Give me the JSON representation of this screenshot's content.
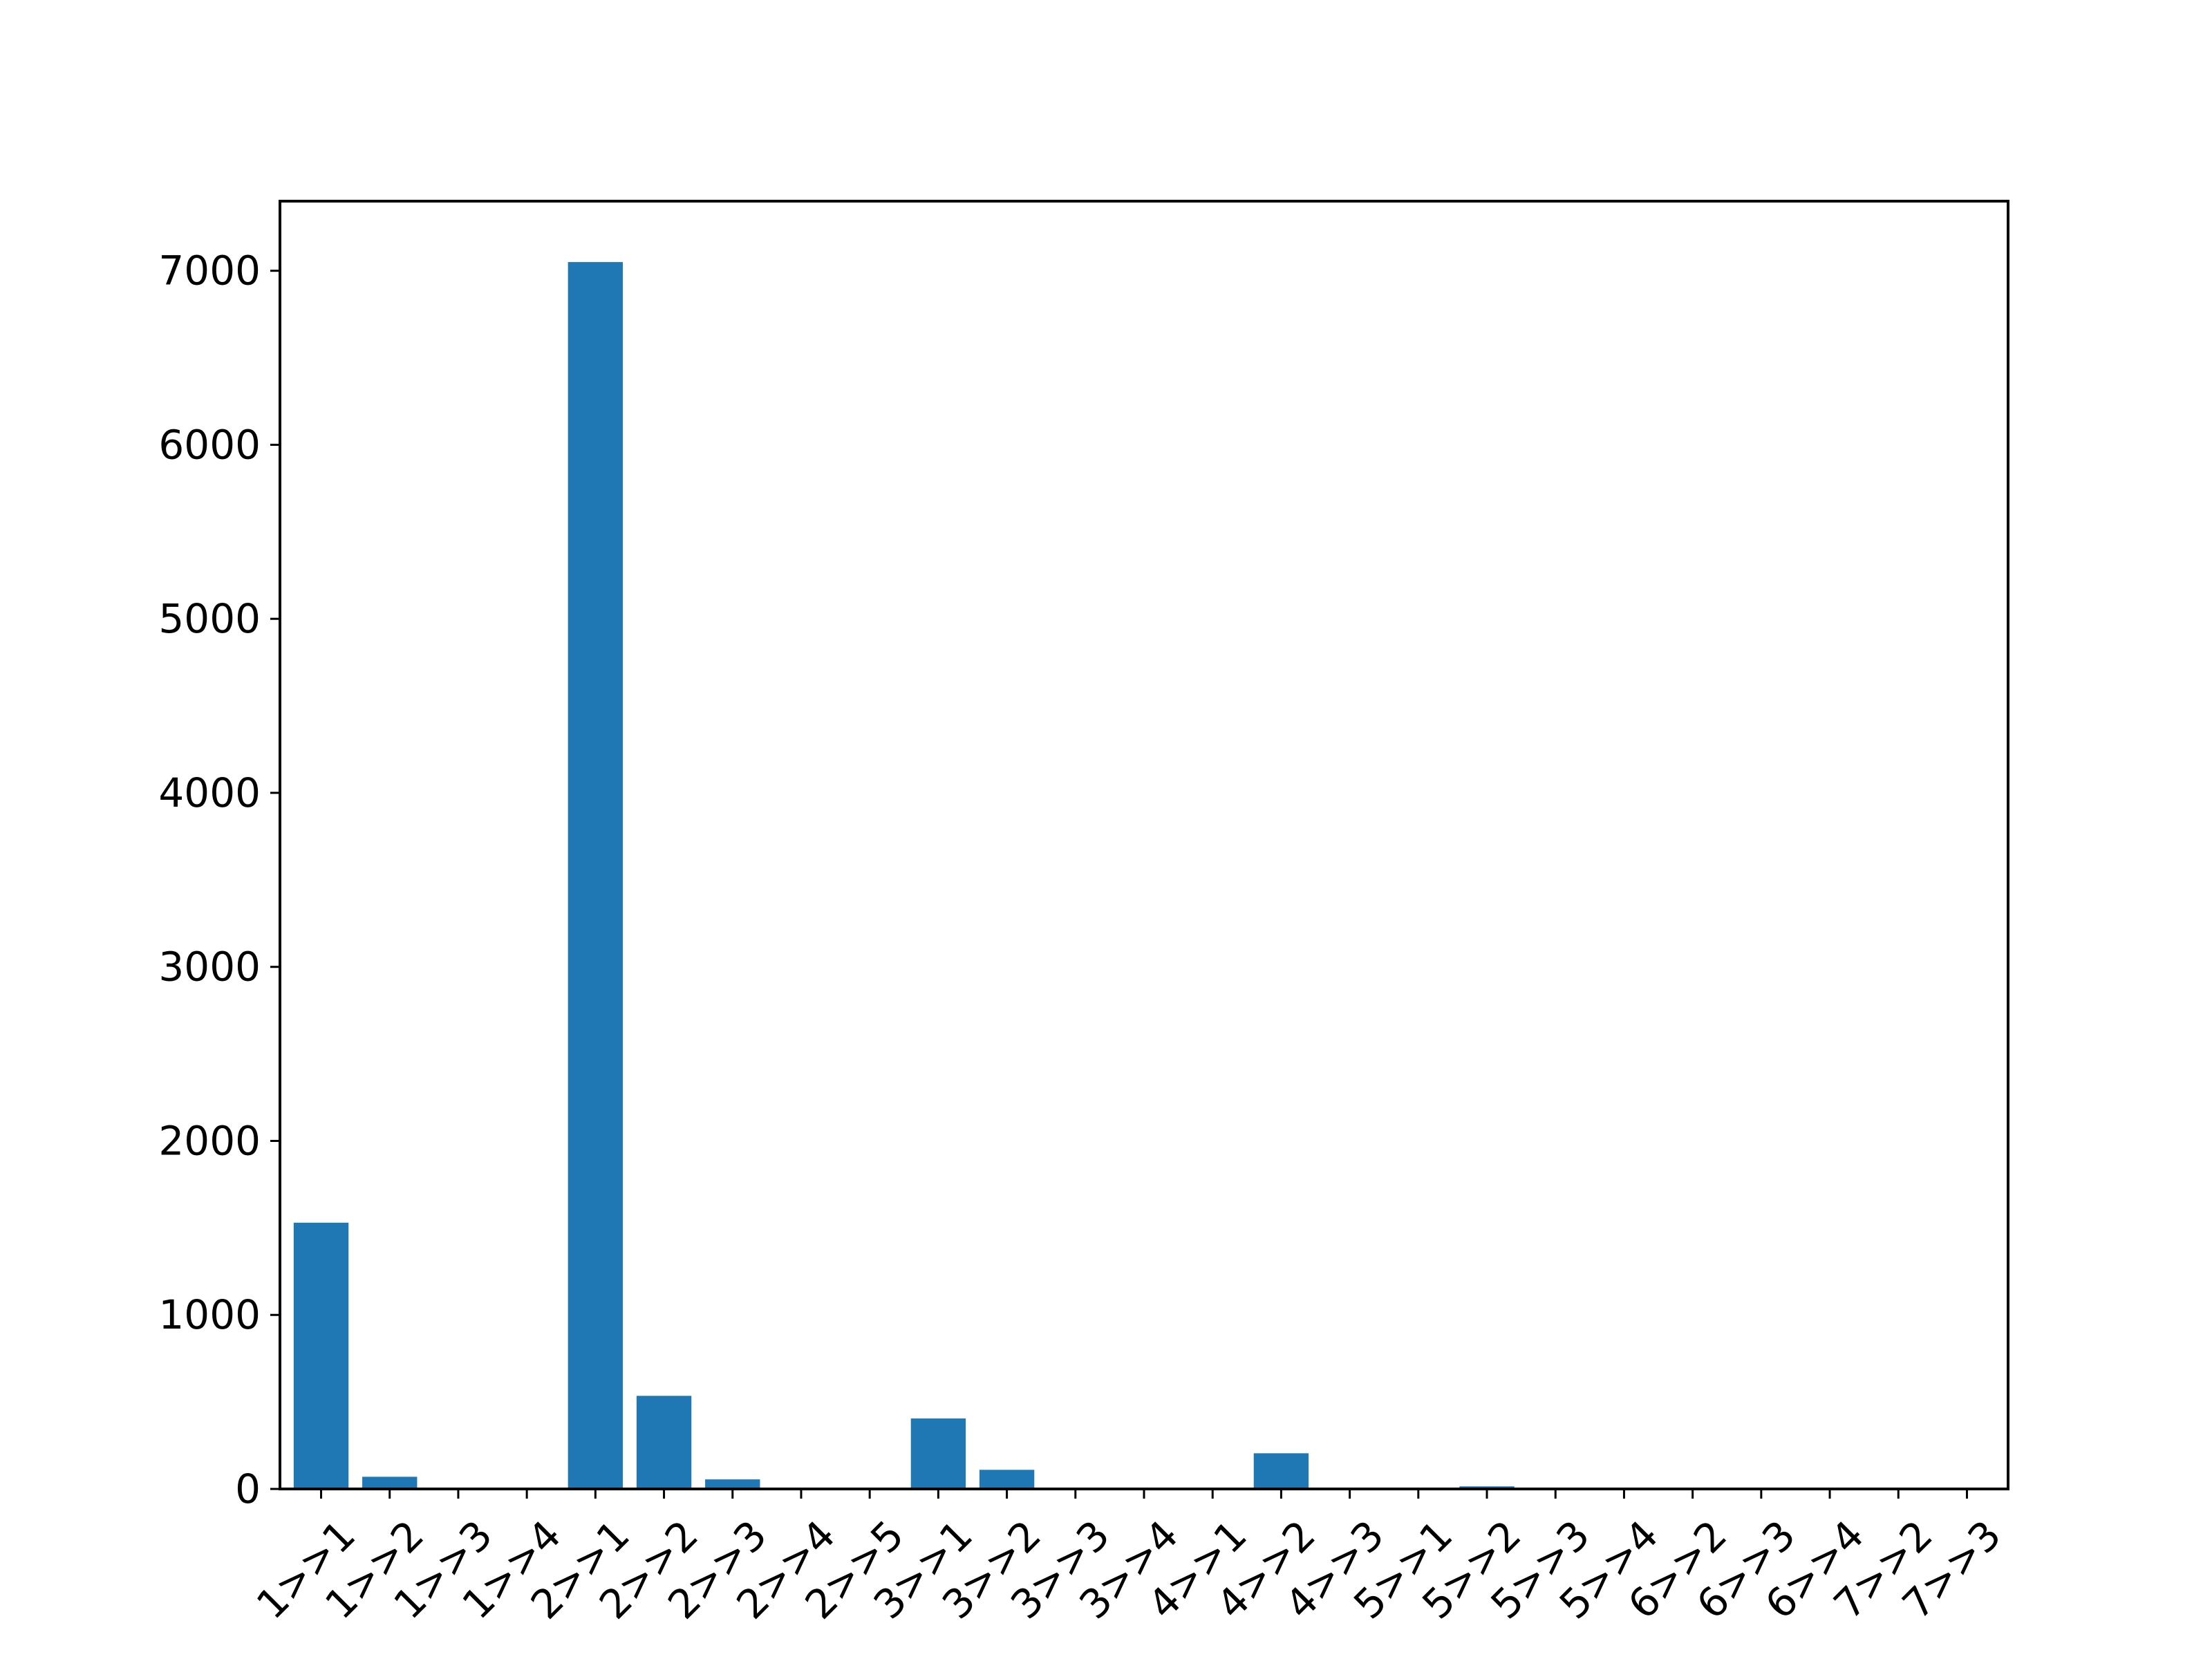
{
  "chart_data": {
    "type": "bar",
    "categories": [
      "1>>1",
      "1>>2",
      "1>>3",
      "1>>4",
      "2>>1",
      "2>>2",
      "2>>3",
      "2>>4",
      "2>>5",
      "3>>1",
      "3>>2",
      "3>>3",
      "3>>4",
      "4>>1",
      "4>>2",
      "4>>3",
      "5>>1",
      "5>>2",
      "5>>3",
      "5>>4",
      "6>>2",
      "6>>3",
      "6>>4",
      "7>>2",
      "7>>3"
    ],
    "values": [
      1530,
      70,
      3,
      2,
      7050,
      535,
      55,
      8,
      3,
      405,
      110,
      6,
      3,
      5,
      205,
      2,
      2,
      15,
      2,
      4,
      2,
      1,
      1,
      1,
      1
    ],
    "title": "",
    "xlabel": "",
    "ylabel": "",
    "ylim": [
      0,
      7400
    ],
    "yticks": [
      0,
      1000,
      2000,
      3000,
      4000,
      5000,
      6000,
      7000
    ],
    "ytick_labels": [
      "0",
      "1000",
      "2000",
      "3000",
      "4000",
      "5000",
      "6000",
      "7000"
    ],
    "x_tick_rotation": 45,
    "grid": false,
    "colors": {
      "bar": "#1f77b4",
      "axes": "#000000",
      "background": "#ffffff"
    }
  }
}
